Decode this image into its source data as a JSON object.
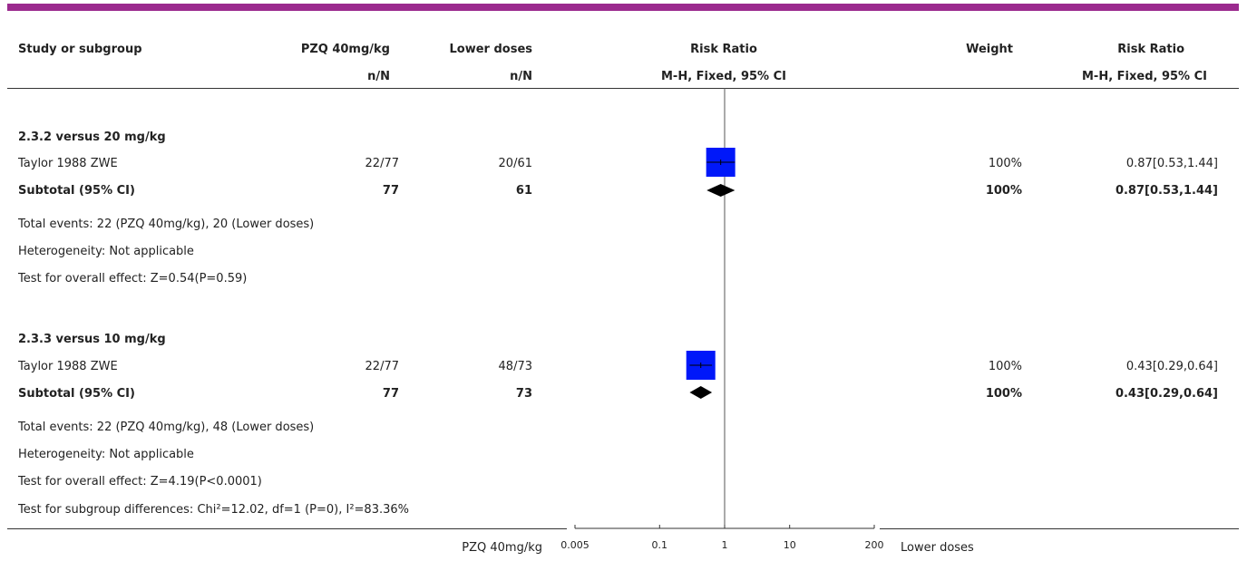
{
  "colors": {
    "top_bar": "#9b2a8e",
    "box": "#0018f9",
    "diamond": "#000000"
  },
  "header": {
    "col_study": "Study or subgroup",
    "col_exp": "PZQ 40mg/kg",
    "col_exp_sub": "n/N",
    "col_ctl": "Lower doses",
    "col_ctl_sub": "n/N",
    "col_rr": "Risk Ratio",
    "col_rr_sub": "M-H, Fixed, 95% CI",
    "col_weight": "Weight",
    "col_rr2": "Risk Ratio",
    "col_rr2_sub": "M-H, Fixed, 95% CI"
  },
  "groups": [
    {
      "title": "2.3.2 versus 20 mg/kg",
      "study": {
        "name": "Taylor 1988 ZWE",
        "exp": "22/77",
        "ctl": "20/61",
        "weight": "100%",
        "ci": "0.87[0.53,1.44]"
      },
      "subtotal": {
        "label": "Subtotal (95% CI)",
        "exp": "77",
        "ctl": "61",
        "weight": "100%",
        "ci": "0.87[0.53,1.44]"
      },
      "notes": [
        "Total events: 22 (PZQ 40mg/kg), 20 (Lower doses)",
        "Heterogeneity: Not applicable",
        "Test for overall effect: Z=0.54(P=0.59)"
      ]
    },
    {
      "title": "2.3.3 versus 10 mg/kg",
      "study": {
        "name": "Taylor 1988 ZWE",
        "exp": "22/77",
        "ctl": "48/73",
        "weight": "100%",
        "ci": "0.43[0.29,0.64]"
      },
      "subtotal": {
        "label": "Subtotal (95% CI)",
        "exp": "77",
        "ctl": "73",
        "weight": "100%",
        "ci": "0.43[0.29,0.64]"
      },
      "notes": [
        "Total events: 22 (PZQ 40mg/kg), 48 (Lower doses)",
        "Heterogeneity: Not applicable",
        "Test for overall effect: Z=4.19(P<0.0001)"
      ]
    }
  ],
  "footer": {
    "subgroup_diff": "Test for subgroup differences: Chi²=12.02, df=1 (P=0), I²=83.36%",
    "left_label": "PZQ 40mg/kg",
    "right_label": "Lower doses"
  },
  "chart_data": {
    "type": "forest",
    "scale": "log",
    "xlim": [
      0.005,
      200
    ],
    "null_line": 1,
    "ticks": [
      "0.005",
      "0.1",
      "1",
      "10",
      "200"
    ],
    "tick_values": [
      0.005,
      0.1,
      1,
      10,
      200
    ],
    "studies": [
      {
        "group": "2.3.2 versus 20 mg/kg",
        "name": "Taylor 1988 ZWE",
        "rr": 0.87,
        "lo": 0.53,
        "hi": 1.44,
        "weight": 100
      },
      {
        "group": "2.3.3 versus 10 mg/kg",
        "name": "Taylor 1988 ZWE",
        "rr": 0.43,
        "lo": 0.29,
        "hi": 0.64,
        "weight": 100
      }
    ],
    "subtotals": [
      {
        "group": "2.3.2 versus 20 mg/kg",
        "rr": 0.87,
        "lo": 0.53,
        "hi": 1.44
      },
      {
        "group": "2.3.3 versus 10 mg/kg",
        "rr": 0.43,
        "lo": 0.29,
        "hi": 0.64
      }
    ]
  }
}
